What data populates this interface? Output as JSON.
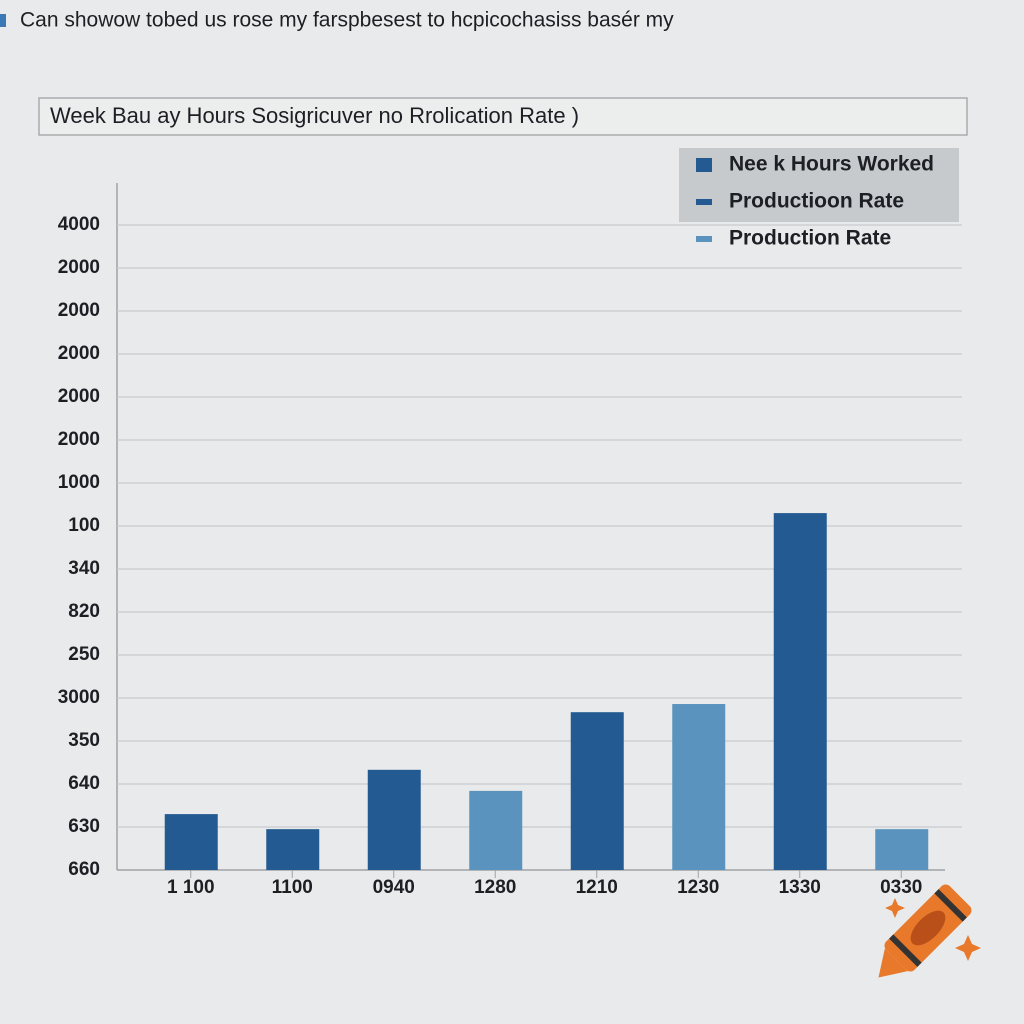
{
  "chart_data": {
    "type": "bar",
    "header": "Can showow tobed us rose my farspbesest to hcpicochasiss basér my",
    "title": "Week Bau ay Hours Sosigricuver no Rrolication Rate  )",
    "categories": [
      "1 100",
      "1100",
      "0940",
      "1280",
      "1210",
      "1230",
      "1330",
      "0330"
    ],
    "values": [
      1.3,
      0.95,
      2.33,
      1.84,
      3.67,
      3.86,
      8.3,
      0.95
    ],
    "colors": [
      "#245a92",
      "#245a92",
      "#245a92",
      "#5b93bf",
      "#245a92",
      "#5b93bf",
      "#245a92",
      "#5b93bf"
    ],
    "legend": [
      {
        "name": "Nee k Hours Worked",
        "color": "#245a92"
      },
      {
        "name": "Productioon Rate",
        "color": "#245a92"
      },
      {
        "name": "Production Rate",
        "color": "#5b93bf"
      }
    ],
    "ylim": [
      0,
      15.5
    ],
    "yticks": [
      {
        "value": 0,
        "label": "660"
      },
      {
        "value": 1,
        "label": "630"
      },
      {
        "value": 2,
        "label": "640"
      },
      {
        "value": 3,
        "label": "350"
      },
      {
        "value": 4,
        "label": "3000"
      },
      {
        "value": 5,
        "label": "250"
      },
      {
        "value": 6,
        "label": "820"
      },
      {
        "value": 7,
        "label": "340"
      },
      {
        "value": 8,
        "label": "100"
      },
      {
        "value": 9,
        "label": "1000"
      },
      {
        "value": 10,
        "label": "2000"
      },
      {
        "value": 11,
        "label": "2000"
      },
      {
        "value": 12,
        "label": "2000"
      },
      {
        "value": 13,
        "label": "2000"
      },
      {
        "value": 14,
        "label": "2000"
      },
      {
        "value": 15,
        "label": "4000"
      }
    ],
    "grid": true
  }
}
